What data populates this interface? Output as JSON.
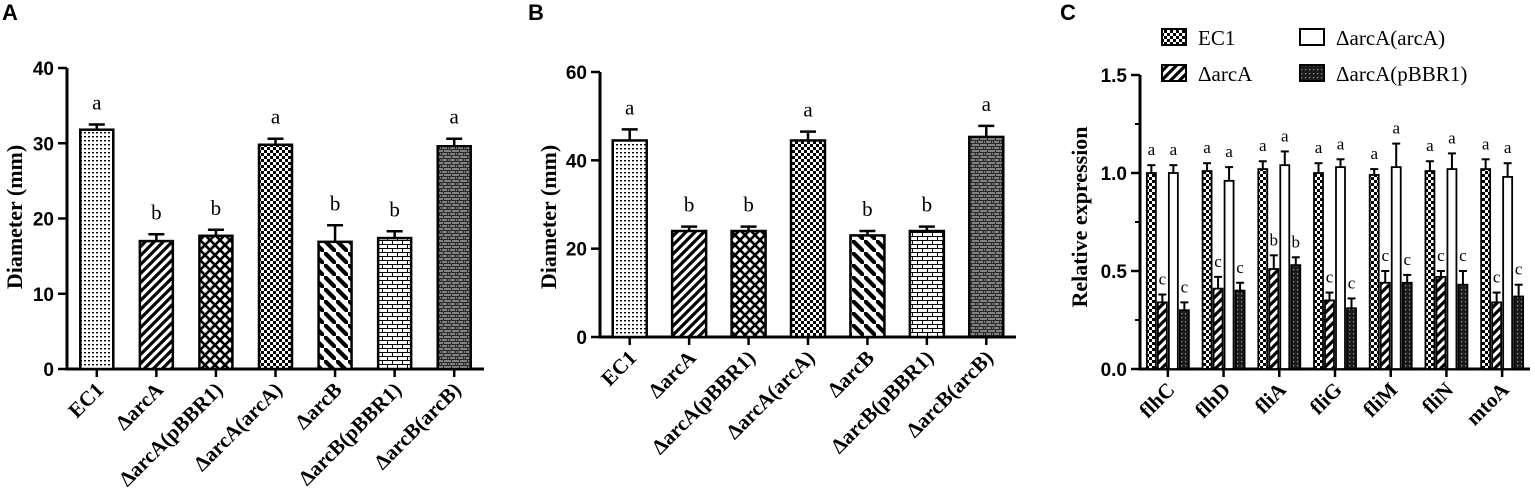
{
  "chart_data": [
    {
      "panel": "A",
      "type": "bar",
      "ylabel": "Diameter (mm)",
      "ylim": [
        0,
        40
      ],
      "yticks": [
        "0",
        "10",
        "20",
        "30",
        "40"
      ],
      "categories": [
        "EC1",
        "ΔarcA",
        "ΔarcA(pBBR1)",
        "ΔarcA(arcA)",
        "ΔarcB",
        "ΔarcB(pBBR1)",
        "ΔarcB(arcB)"
      ],
      "values": [
        31.8,
        17.0,
        17.7,
        29.8,
        16.9,
        17.4,
        29.6
      ],
      "errors": [
        0.7,
        0.9,
        0.8,
        0.8,
        2.2,
        0.9,
        1.0
      ],
      "letters": [
        "a",
        "b",
        "b",
        "a",
        "b",
        "b",
        "a"
      ],
      "patterns": [
        "dots",
        "diag",
        "lattice",
        "checker",
        "diagrev",
        "brick",
        "darkbrick"
      ]
    },
    {
      "panel": "B",
      "type": "bar",
      "ylabel": "Diameter (mm)",
      "ylim": [
        0,
        60
      ],
      "yticks": [
        "0",
        "20",
        "40",
        "60"
      ],
      "categories": [
        "EC1",
        "ΔarcA",
        "ΔarcA(pBBR1)",
        "ΔarcA(arcA)",
        "ΔarcB",
        "ΔarcB(pBBR1)",
        "ΔarcB(arcB)"
      ],
      "values": [
        44.5,
        24.0,
        24.0,
        44.5,
        23.0,
        24.0,
        45.3
      ],
      "errors": [
        2.5,
        1.0,
        1.0,
        2.0,
        1.0,
        1.0,
        2.5
      ],
      "letters": [
        "a",
        "b",
        "b",
        "a",
        "b",
        "b",
        "a"
      ],
      "patterns": [
        "dots",
        "diag",
        "lattice",
        "checker",
        "diagrev",
        "brick",
        "darkbrick"
      ]
    },
    {
      "panel": "C",
      "type": "bar",
      "ylabel": "Relative expression",
      "ylim": [
        0,
        1.5
      ],
      "yticks": [
        "0.0",
        "0.5",
        "1.0",
        "1.5"
      ],
      "categories": [
        "flhC",
        "flhD",
        "fliA",
        "fliG",
        "fliM",
        "fliN",
        "mtoA"
      ],
      "legend": [
        "EC1",
        "ΔarcA(arcA)",
        "ΔarcA",
        "ΔarcA(pBBR1)"
      ],
      "series": [
        {
          "name": "EC1",
          "pattern": "checker",
          "values": [
            1.0,
            1.01,
            1.02,
            1.0,
            0.99,
            1.01,
            1.02
          ],
          "errors": [
            0.04,
            0.04,
            0.04,
            0.05,
            0.03,
            0.05,
            0.05
          ],
          "letters": [
            "a",
            "a",
            "a",
            "a",
            "a",
            "a",
            "a"
          ]
        },
        {
          "name": "ΔarcA",
          "pattern": "diag",
          "values": [
            0.34,
            0.41,
            0.51,
            0.35,
            0.44,
            0.47,
            0.34
          ],
          "errors": [
            0.04,
            0.06,
            0.07,
            0.04,
            0.06,
            0.03,
            0.05
          ],
          "letters": [
            "c",
            "c",
            "b",
            "c",
            "c",
            "c",
            "c"
          ]
        },
        {
          "name": "ΔarcA(arcA)",
          "pattern": "white",
          "values": [
            1.0,
            0.96,
            1.04,
            1.03,
            1.03,
            1.02,
            0.98
          ],
          "errors": [
            0.04,
            0.07,
            0.07,
            0.04,
            0.12,
            0.08,
            0.07
          ],
          "letters": [
            "a",
            "a",
            "a",
            "a",
            "a",
            "a",
            "a"
          ]
        },
        {
          "name": "ΔarcA(pBBR1)",
          "pattern": "darkdots",
          "values": [
            0.3,
            0.4,
            0.53,
            0.31,
            0.44,
            0.43,
            0.37
          ],
          "errors": [
            0.04,
            0.04,
            0.04,
            0.05,
            0.04,
            0.07,
            0.06
          ],
          "letters": [
            "c",
            "c",
            "b",
            "c",
            "c",
            "c",
            "c"
          ]
        }
      ]
    }
  ]
}
